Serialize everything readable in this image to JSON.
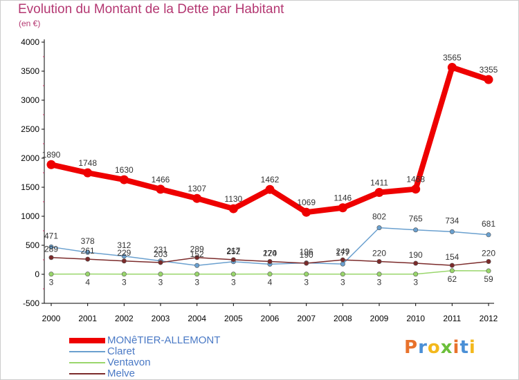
{
  "header": {
    "title": "Evolution du Montant de la Dette par Habitant",
    "unit": "(en €)"
  },
  "brand": {
    "text": "Proxiti",
    "colors": [
      "#e8722c",
      "#4a8fd6",
      "#f3b81c",
      "#6bbf3a",
      "#e8722c",
      "#4a8fd6",
      "#f3b81c"
    ]
  },
  "chart_data": {
    "type": "line",
    "title": "Evolution du Montant de la Dette par Habitant",
    "subtitle": "(en €)",
    "xlabel": "",
    "ylabel": "",
    "x": [
      "2000",
      "2001",
      "2002",
      "2003",
      "2004",
      "2005",
      "2006",
      "2007",
      "2008",
      "2009",
      "2010",
      "2011",
      "2012"
    ],
    "ylim": [
      -500,
      4000
    ],
    "yticks": [
      -500,
      0,
      500,
      1000,
      1500,
      2000,
      2500,
      3000,
      3500,
      4000
    ],
    "grid": false,
    "legend_position": "bottom-left",
    "series": [
      {
        "name": "MONêTIER-ALLEMONT",
        "color": "#ee0000",
        "values": [
          1890,
          1748,
          1630,
          1466,
          1307,
          1130,
          1462,
          1069,
          1146,
          1411,
          1468,
          3565,
          3355
        ],
        "labels": [
          "1890",
          "1748",
          "1630",
          "1466",
          "1307",
          "1130",
          "1462",
          "1069",
          "1146",
          "1411",
          "1468",
          "3565",
          "3355"
        ]
      },
      {
        "name": "Claret",
        "color": "#6aa0cf",
        "values": [
          471,
          378,
          312,
          231,
          152,
          217,
          174,
          196,
          177,
          802,
          765,
          734,
          681
        ],
        "labels": [
          "471",
          "378",
          "312",
          "231",
          "152",
          "217",
          "174",
          "196",
          "177",
          "802",
          "765",
          "734",
          "681"
        ]
      },
      {
        "name": "Ventavon",
        "color": "#99d66b",
        "values": [
          3,
          4,
          3,
          3,
          3,
          3,
          4,
          3,
          3,
          3,
          3,
          62,
          59
        ],
        "labels": [
          "3",
          "4",
          "3",
          "3",
          "3",
          "3",
          "4",
          "3",
          "3",
          "3",
          "3",
          "62",
          "59"
        ]
      },
      {
        "name": "Melve",
        "color": "#7b2a2a",
        "values": [
          289,
          261,
          229,
          203,
          289,
          252,
          220,
          190,
          249,
          220,
          190,
          154,
          220
        ],
        "labels": [
          "289",
          "261",
          "229",
          "203",
          "289",
          "252",
          "220",
          "190",
          "249",
          "220",
          "190",
          "154",
          "220"
        ]
      }
    ]
  }
}
